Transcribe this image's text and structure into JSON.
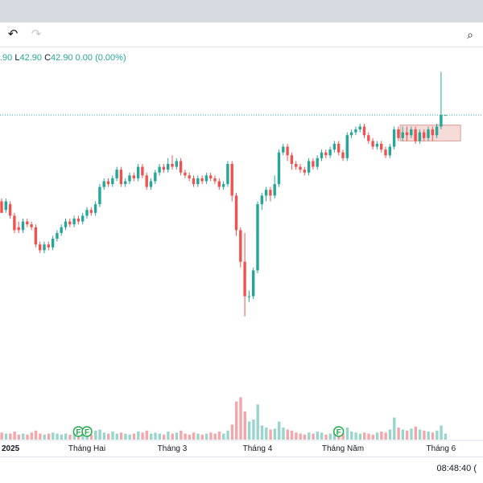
{
  "toolbar": {
    "undo_icon": "undo-icon",
    "redo_icon": "redo-icon",
    "screenshot_icon": "camera-search-icon"
  },
  "legend": {
    "open": ".90",
    "low_key": "L",
    "low": "42.90",
    "close_key": "C",
    "close": "42.90",
    "change": "0.00 (0.00%)"
  },
  "clock": "08:48:40 (",
  "colors": {
    "up": "#26a69a",
    "down": "#ef5350",
    "vol_up": "#9ad5cd",
    "vol_down": "#f4a7aa",
    "box_fill": "#f6dcd9",
    "box_stroke": "#d99b95"
  },
  "chart_data": {
    "type": "candlestick",
    "x_labels": [
      "2025",
      "Tháng Hai",
      "Tháng 3",
      "Tháng 4",
      "Tháng Năm",
      "Tháng 6"
    ],
    "x_label_bar_index": [
      0,
      20,
      40,
      60,
      80,
      103
    ],
    "ylim": [
      35.5,
      45.0
    ],
    "volume_max": 100,
    "last_price": 42.9,
    "dividend_markers": [
      {
        "bar": 18,
        "label": "F"
      },
      {
        "bar": 20,
        "label": "F"
      },
      {
        "bar": 79,
        "label": "F"
      }
    ],
    "highlight_box": {
      "from_bar": 94,
      "to_bar": 107,
      "low": 42.0,
      "high": 42.55
    },
    "candles": [
      [
        39.9,
        39.5,
        40.0,
        39.5,
        7
      ],
      [
        39.6,
        39.9,
        40.0,
        39.5,
        6
      ],
      [
        39.8,
        39.4,
        39.9,
        39.3,
        6
      ],
      [
        39.4,
        38.9,
        39.5,
        38.8,
        8
      ],
      [
        39.0,
        38.9,
        39.2,
        38.8,
        5
      ],
      [
        38.9,
        39.2,
        39.3,
        38.8,
        6
      ],
      [
        39.2,
        39.1,
        39.3,
        39.0,
        5
      ],
      [
        39.1,
        39.0,
        39.2,
        38.9,
        7
      ],
      [
        39.0,
        38.4,
        39.1,
        38.3,
        9
      ],
      [
        38.4,
        38.2,
        38.5,
        38.1,
        6
      ],
      [
        38.2,
        38.4,
        38.5,
        38.1,
        5
      ],
      [
        38.4,
        38.3,
        38.5,
        38.2,
        6
      ],
      [
        38.3,
        38.6,
        38.7,
        38.2,
        7
      ],
      [
        38.6,
        38.8,
        38.9,
        38.5,
        6
      ],
      [
        38.8,
        39.0,
        39.1,
        38.7,
        5
      ],
      [
        39.0,
        39.2,
        39.3,
        38.9,
        6
      ],
      [
        39.2,
        39.1,
        39.3,
        39.0,
        5
      ],
      [
        39.1,
        39.3,
        39.4,
        39.0,
        6
      ],
      [
        39.3,
        39.2,
        39.4,
        39.1,
        8
      ],
      [
        39.2,
        39.4,
        39.5,
        39.1,
        6
      ],
      [
        39.4,
        39.6,
        39.7,
        39.3,
        7
      ],
      [
        39.6,
        39.5,
        39.7,
        39.4,
        5
      ],
      [
        39.5,
        39.8,
        39.9,
        39.4,
        9
      ],
      [
        39.8,
        40.4,
        40.5,
        39.7,
        10
      ],
      [
        40.4,
        40.6,
        40.7,
        40.3,
        7
      ],
      [
        40.6,
        40.5,
        40.7,
        40.4,
        6
      ],
      [
        40.5,
        40.7,
        40.8,
        40.4,
        8
      ],
      [
        40.7,
        41.0,
        41.1,
        40.6,
        6
      ],
      [
        41.0,
        40.5,
        41.1,
        40.4,
        7
      ],
      [
        40.5,
        40.6,
        40.7,
        40.4,
        6
      ],
      [
        40.6,
        40.8,
        40.9,
        40.5,
        5
      ],
      [
        40.8,
        40.7,
        40.9,
        40.6,
        6
      ],
      [
        40.7,
        41.1,
        41.2,
        40.6,
        8
      ],
      [
        41.1,
        40.8,
        41.2,
        40.7,
        7
      ],
      [
        40.8,
        40.4,
        40.9,
        40.3,
        9
      ],
      [
        40.4,
        40.6,
        40.7,
        40.3,
        6
      ],
      [
        40.6,
        40.9,
        41.0,
        40.5,
        7
      ],
      [
        40.9,
        41.1,
        41.2,
        40.8,
        6
      ],
      [
        41.1,
        41.0,
        41.2,
        40.9,
        5
      ],
      [
        41.0,
        41.2,
        41.4,
        40.9,
        8
      ],
      [
        41.2,
        41.1,
        41.5,
        41.0,
        6
      ],
      [
        41.1,
        41.3,
        41.4,
        41.0,
        7
      ],
      [
        41.3,
        40.9,
        41.4,
        40.8,
        9
      ],
      [
        40.9,
        40.8,
        41.0,
        40.7,
        6
      ],
      [
        40.8,
        40.7,
        40.9,
        40.6,
        5
      ],
      [
        40.7,
        40.5,
        40.8,
        40.4,
        7
      ],
      [
        40.5,
        40.7,
        40.8,
        40.4,
        6
      ],
      [
        40.7,
        40.6,
        40.8,
        40.5,
        5
      ],
      [
        40.6,
        40.8,
        40.9,
        40.5,
        6
      ],
      [
        40.8,
        40.7,
        40.9,
        40.6,
        7
      ],
      [
        40.7,
        40.6,
        40.8,
        40.5,
        6
      ],
      [
        40.6,
        40.4,
        40.7,
        40.3,
        8
      ],
      [
        40.4,
        40.5,
        40.6,
        40.3,
        6
      ],
      [
        40.5,
        41.2,
        41.3,
        40.4,
        9
      ],
      [
        41.2,
        40.1,
        41.3,
        39.9,
        15
      ],
      [
        40.1,
        38.9,
        40.2,
        38.7,
        38
      ],
      [
        38.9,
        37.8,
        39.0,
        37.6,
        42
      ],
      [
        37.8,
        36.6,
        38.8,
        35.9,
        28
      ],
      [
        36.6,
        36.6,
        36.8,
        36.4,
        18
      ],
      [
        36.6,
        37.5,
        37.6,
        36.5,
        20
      ],
      [
        37.5,
        39.8,
        39.9,
        37.4,
        35
      ],
      [
        39.8,
        40.1,
        40.2,
        39.6,
        14
      ],
      [
        40.1,
        40.3,
        40.4,
        39.9,
        12
      ],
      [
        40.3,
        40.1,
        40.4,
        39.9,
        10
      ],
      [
        40.1,
        40.5,
        40.8,
        40.0,
        11
      ],
      [
        40.5,
        41.6,
        41.7,
        40.4,
        18
      ],
      [
        41.6,
        41.8,
        41.9,
        41.5,
        12
      ],
      [
        41.8,
        41.5,
        41.9,
        41.3,
        10
      ],
      [
        41.5,
        41.2,
        41.6,
        41.0,
        9
      ],
      [
        41.2,
        41.1,
        41.3,
        41.0,
        7
      ],
      [
        41.1,
        41.0,
        41.2,
        40.9,
        6
      ],
      [
        41.0,
        40.9,
        41.1,
        40.8,
        5
      ],
      [
        40.9,
        41.3,
        41.4,
        40.8,
        7
      ],
      [
        41.3,
        41.1,
        41.4,
        41.0,
        6
      ],
      [
        41.1,
        41.4,
        41.5,
        41.0,
        8
      ],
      [
        41.4,
        41.6,
        41.7,
        41.3,
        7
      ],
      [
        41.6,
        41.5,
        41.7,
        41.4,
        5
      ],
      [
        41.5,
        41.7,
        41.8,
        41.4,
        6
      ],
      [
        41.7,
        41.9,
        42.0,
        41.6,
        9
      ],
      [
        41.9,
        41.6,
        42.0,
        41.5,
        8
      ],
      [
        41.6,
        41.4,
        41.7,
        41.3,
        6
      ],
      [
        41.4,
        42.2,
        42.3,
        41.3,
        12
      ],
      [
        42.2,
        42.3,
        42.4,
        42.1,
        8
      ],
      [
        42.3,
        42.4,
        42.5,
        42.2,
        7
      ],
      [
        42.4,
        42.5,
        42.6,
        42.3,
        6
      ],
      [
        42.5,
        42.2,
        42.6,
        42.1,
        7
      ],
      [
        42.2,
        42.0,
        42.3,
        41.9,
        6
      ],
      [
        42.0,
        41.8,
        42.1,
        41.7,
        5
      ],
      [
        41.8,
        41.9,
        42.0,
        41.7,
        7
      ],
      [
        41.9,
        41.7,
        42.0,
        41.6,
        8
      ],
      [
        41.7,
        41.5,
        41.8,
        41.4,
        7
      ],
      [
        41.5,
        41.8,
        41.9,
        41.4,
        10
      ],
      [
        41.8,
        42.4,
        42.5,
        41.7,
        22
      ],
      [
        42.4,
        42.1,
        42.5,
        42.0,
        12
      ],
      [
        42.1,
        42.3,
        42.5,
        42.0,
        10
      ],
      [
        42.3,
        42.2,
        42.5,
        42.0,
        9
      ],
      [
        42.2,
        42.4,
        42.5,
        42.1,
        11
      ],
      [
        42.4,
        42.0,
        42.5,
        41.9,
        13
      ],
      [
        42.0,
        42.3,
        42.4,
        41.9,
        10
      ],
      [
        42.3,
        42.1,
        42.4,
        42.0,
        9
      ],
      [
        42.1,
        42.4,
        42.5,
        42.0,
        8
      ],
      [
        42.4,
        42.2,
        42.5,
        42.0,
        7
      ],
      [
        42.2,
        42.5,
        42.6,
        42.1,
        9
      ],
      [
        42.5,
        42.9,
        44.4,
        42.4,
        14
      ],
      [
        42.9,
        42.9,
        42.9,
        42.9,
        6
      ]
    ]
  }
}
